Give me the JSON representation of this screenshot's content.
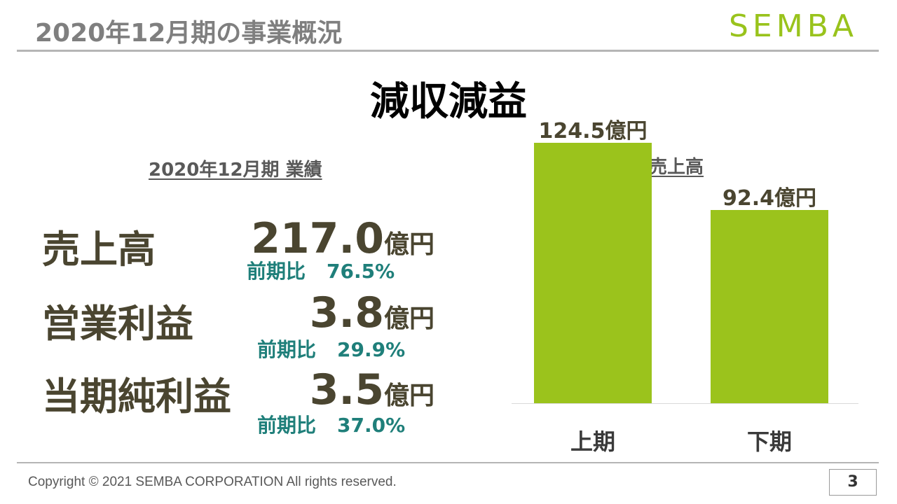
{
  "header": {
    "title": "2020年12月期の事業概況",
    "logo_text": "SEMBA"
  },
  "headline": "減収減益",
  "results": {
    "title": "2020年12月期 業績",
    "metrics": [
      {
        "label": "売上高",
        "value": "217.0",
        "unit": "億円",
        "yoy_label": "前期比",
        "yoy_value": "76.5%"
      },
      {
        "label": "営業利益",
        "value": "3.8",
        "unit": "億円",
        "yoy_label": "前期比",
        "yoy_value": "29.9%"
      },
      {
        "label": "当期純利益",
        "value": "3.5",
        "unit": "億円",
        "yoy_label": "前期比",
        "yoy_value": "37.0%"
      }
    ]
  },
  "chart_data": {
    "type": "bar",
    "title": "半期別売上高",
    "categories": [
      "上期",
      "下期"
    ],
    "values": [
      124.5,
      92.4
    ],
    "data_labels": [
      "124.5億円",
      "92.4億円"
    ],
    "ylim": [
      0,
      140
    ],
    "grid": false,
    "colors": {
      "bar": "#9bc31c"
    }
  },
  "footer": {
    "copyright": "Copyright © 2021 SEMBA CORPORATION  All rights reserved.",
    "page_number": "3"
  }
}
